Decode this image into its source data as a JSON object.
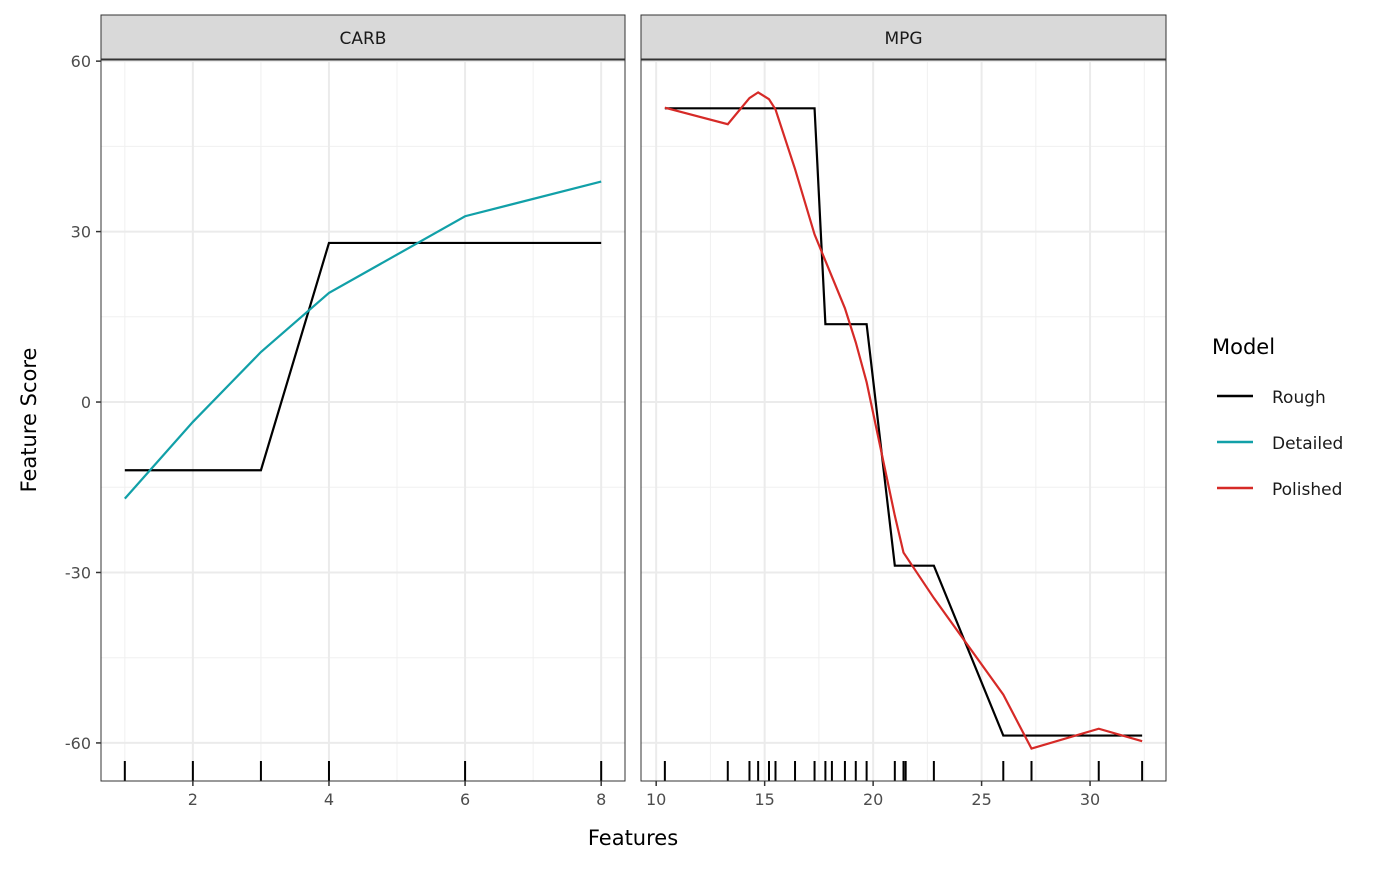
{
  "chart_data": {
    "type": "line",
    "xlabel": "Features",
    "ylabel": "Feature Score",
    "ylim": [
      -66.7,
      60.2
    ],
    "yticks": [
      60,
      30,
      0,
      -30,
      -60
    ],
    "ytick_labels": [
      "60",
      "30",
      "0",
      "-30",
      "-60"
    ],
    "grid": true,
    "legend": {
      "title": "Model",
      "placement": "right",
      "entries": [
        {
          "name": "Rough",
          "color": "#000000"
        },
        {
          "name": "Detailed",
          "color": "#11a0a8"
        },
        {
          "name": "Polished",
          "color": "#d62a27"
        }
      ]
    },
    "panels": [
      {
        "title": "CARB",
        "xlim": [
          0.65,
          8.35
        ],
        "xticks": [
          2,
          4,
          6,
          8
        ],
        "xtick_labels": [
          "2",
          "4",
          "6",
          "8"
        ],
        "rug": [
          1,
          2,
          3,
          4,
          6,
          8
        ],
        "series": [
          {
            "name": "Rough",
            "x": [
              1,
              3,
              4,
              8
            ],
            "y": [
              -12,
              -12,
              28,
              28
            ]
          },
          {
            "name": "Detailed",
            "x": [
              1,
              2,
              3,
              4,
              6,
              8
            ],
            "y": [
              -17,
              -3.5,
              8.8,
              19.2,
              32.7,
              38.8
            ]
          }
        ]
      },
      {
        "title": "MPG",
        "xlim": [
          9.3,
          33.5
        ],
        "xticks": [
          10,
          15,
          20,
          25,
          30
        ],
        "xtick_labels": [
          "10",
          "15",
          "20",
          "25",
          "30"
        ],
        "rug": [
          10.4,
          13.3,
          14.3,
          14.7,
          15.2,
          15.5,
          16.4,
          17.3,
          17.8,
          18.1,
          18.7,
          19.2,
          19.7,
          21.0,
          21.4,
          21.5,
          22.8,
          26.0,
          27.3,
          30.4,
          32.4
        ],
        "series": [
          {
            "name": "Rough",
            "x": [
              10.4,
              17.3,
              17.8,
              19.7,
              21.0,
              22.8,
              26.0,
              32.4
            ],
            "y": [
              51.7,
              51.7,
              13.7,
              13.7,
              -28.8,
              -28.8,
              -58.7,
              -58.7
            ]
          },
          {
            "name": "Polished",
            "x": [
              10.4,
              13.3,
              14.3,
              14.7,
              15.2,
              15.5,
              16.4,
              17.3,
              18.7,
              19.2,
              19.7,
              21.0,
              21.4,
              22.8,
              26.0,
              27.3,
              30.4,
              32.4
            ],
            "y": [
              51.8,
              48.9,
              53.5,
              54.5,
              53.3,
              51.5,
              41,
              29.5,
              16.5,
              10.5,
              3.5,
              -20,
              -26.5,
              -34.5,
              -51.5,
              -61,
              -57.5,
              -59.7
            ]
          }
        ]
      }
    ]
  }
}
